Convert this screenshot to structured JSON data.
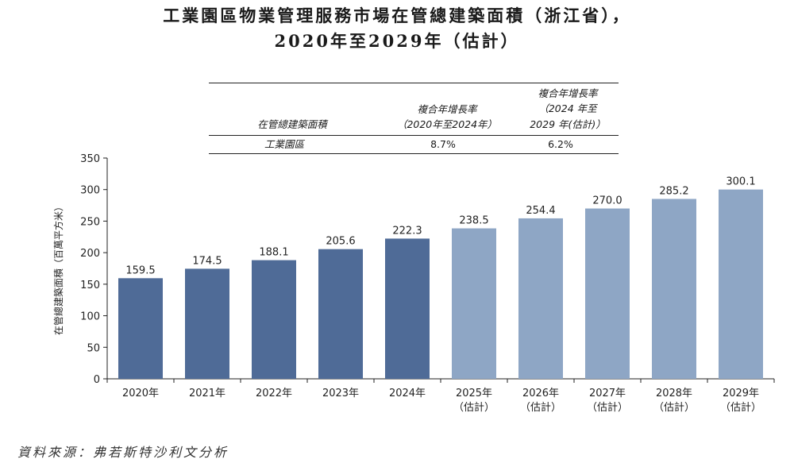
{
  "title_line1": "工業園區物業管理服務市場在管總建築面積（浙江省），",
  "title_line2": "2020年至2029年（估計）",
  "table": {
    "header_row_label": "在管總建築面積",
    "col1_header_line1": "複合年增長率",
    "col1_header_line2": "（2020年至2024年）",
    "col2_header_line1": "複合年增長率",
    "col2_header_line2": "（2024 年至",
    "col2_header_line3": "2029 年(估計)）",
    "row_label": "工業園區",
    "col1_value": "8.7%",
    "col2_value": "6.2%"
  },
  "source": "資料來源：弗若斯特沙利文分析",
  "colors": {
    "actual": "#4f6b97",
    "forecast": "#8ea6c5",
    "axis": "#222222"
  },
  "chart_data": {
    "type": "bar",
    "title": "工業園區物業管理服務市場在管總建築面積（浙江省），2020年至2029年（估計）",
    "ylabel": "在管總建築面積（百萬平方米）",
    "ylim": [
      0,
      350
    ],
    "yticks": [
      0,
      50,
      100,
      150,
      200,
      250,
      300,
      350
    ],
    "categories": [
      "2020年",
      "2021年",
      "2022年",
      "2023年",
      "2024年",
      "2025年",
      "2026年",
      "2027年",
      "2028年",
      "2029年"
    ],
    "category_sublabels": [
      "",
      "",
      "",
      "",
      "",
      "（估計）",
      "（估計）",
      "（估計）",
      "（估計）",
      "（估計）"
    ],
    "values": [
      159.5,
      174.5,
      188.1,
      205.6,
      222.3,
      238.5,
      254.4,
      270.0,
      285.2,
      300.1
    ],
    "value_labels": [
      "159.5",
      "174.5",
      "188.1",
      "205.6",
      "222.3",
      "238.5",
      "254.4",
      "270.0",
      "285.2",
      "300.1"
    ],
    "forecast": [
      false,
      false,
      false,
      false,
      false,
      true,
      true,
      true,
      true,
      true
    ],
    "grid": false,
    "legend": "none"
  }
}
